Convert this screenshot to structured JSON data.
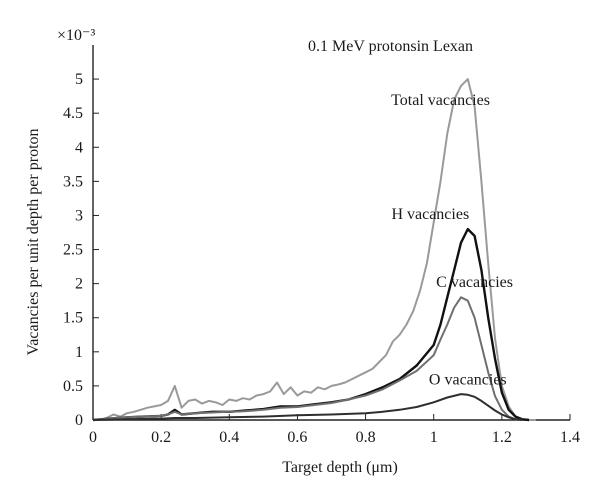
{
  "chart_data": {
    "type": "line",
    "title": "0.1 MeV protonsin Lexan",
    "xlabel": "Target depth (μm)",
    "ylabel": "Vacancies per unit depth per proton",
    "y_multiplier_label": "×10⁻³",
    "xlim": [
      0,
      1.4
    ],
    "ylim": [
      0,
      0.0055
    ],
    "x_ticks": [
      0,
      0.2,
      0.4,
      0.6,
      0.8,
      1,
      1.2,
      1.4
    ],
    "x_tick_labels": [
      "0",
      "0.2",
      "0.4",
      "0.6",
      "0.8",
      "1",
      "1.2",
      "1.4"
    ],
    "y_ticks": [
      0,
      0.0005,
      0.001,
      0.0015,
      0.002,
      0.0025,
      0.003,
      0.0035,
      0.004,
      0.0045,
      0.005
    ],
    "y_tick_labels": [
      "0",
      "0.5",
      "1",
      "1.5",
      "2",
      "2.5",
      "3",
      "3.5",
      "4",
      "4.5",
      "5"
    ],
    "grid": false,
    "series": [
      {
        "name": "Total vacancies",
        "color": "#9a9a9a",
        "x": [
          0.0,
          0.02,
          0.04,
          0.06,
          0.08,
          0.1,
          0.12,
          0.14,
          0.16,
          0.18,
          0.2,
          0.22,
          0.24,
          0.26,
          0.28,
          0.3,
          0.32,
          0.34,
          0.36,
          0.38,
          0.4,
          0.42,
          0.44,
          0.46,
          0.48,
          0.5,
          0.52,
          0.54,
          0.56,
          0.58,
          0.6,
          0.62,
          0.64,
          0.66,
          0.68,
          0.7,
          0.72,
          0.74,
          0.76,
          0.78,
          0.8,
          0.82,
          0.84,
          0.86,
          0.88,
          0.9,
          0.92,
          0.94,
          0.96,
          0.98,
          1.0,
          1.02,
          1.04,
          1.06,
          1.08,
          1.1,
          1.12,
          1.14,
          1.16,
          1.18,
          1.2,
          1.22,
          1.24,
          1.26,
          1.28,
          1.3
        ],
        "values": [
          0.0,
          0.0,
          3e-05,
          8e-05,
          5e-05,
          0.0001,
          0.00012,
          0.00015,
          0.00018,
          0.0002,
          0.00022,
          0.00028,
          0.0005,
          0.00018,
          0.00028,
          0.0003,
          0.00024,
          0.00028,
          0.00026,
          0.00022,
          0.0003,
          0.00028,
          0.00032,
          0.0003,
          0.00036,
          0.00038,
          0.00042,
          0.00055,
          0.00038,
          0.00048,
          0.00036,
          0.00042,
          0.0004,
          0.00048,
          0.00045,
          0.0005,
          0.00052,
          0.00055,
          0.0006,
          0.00065,
          0.0007,
          0.00075,
          0.00085,
          0.00095,
          0.00115,
          0.00125,
          0.0014,
          0.0016,
          0.0019,
          0.0023,
          0.0029,
          0.0035,
          0.0042,
          0.0047,
          0.0049,
          0.005,
          0.0046,
          0.0035,
          0.0023,
          0.0012,
          0.0005,
          0.0002,
          5e-05,
          0.0,
          0.0,
          0.0
        ]
      },
      {
        "name": "H vacancies",
        "color": "#111111",
        "x": [
          0.0,
          0.05,
          0.1,
          0.15,
          0.2,
          0.22,
          0.24,
          0.26,
          0.3,
          0.35,
          0.4,
          0.45,
          0.5,
          0.55,
          0.6,
          0.65,
          0.7,
          0.75,
          0.8,
          0.85,
          0.9,
          0.95,
          1.0,
          1.02,
          1.04,
          1.06,
          1.08,
          1.1,
          1.12,
          1.14,
          1.16,
          1.18,
          1.2,
          1.22,
          1.24,
          1.26,
          1.28
        ],
        "values": [
          0.0,
          2e-05,
          4e-05,
          5e-05,
          6e-05,
          8e-05,
          0.00015,
          8e-05,
          0.0001,
          0.00012,
          0.00012,
          0.00014,
          0.00016,
          0.0002,
          0.0002,
          0.00023,
          0.00026,
          0.0003,
          0.00038,
          0.00048,
          0.0006,
          0.0008,
          0.0011,
          0.0014,
          0.0018,
          0.0022,
          0.0026,
          0.0028,
          0.0027,
          0.0022,
          0.0015,
          0.0009,
          0.0004,
          0.00015,
          5e-05,
          1e-05,
          0.0
        ]
      },
      {
        "name": "C vacancies",
        "color": "#6f6f6f",
        "x": [
          0.0,
          0.05,
          0.1,
          0.15,
          0.2,
          0.22,
          0.24,
          0.26,
          0.3,
          0.35,
          0.4,
          0.45,
          0.5,
          0.55,
          0.6,
          0.65,
          0.7,
          0.75,
          0.8,
          0.85,
          0.9,
          0.95,
          1.0,
          1.02,
          1.04,
          1.06,
          1.08,
          1.1,
          1.12,
          1.14,
          1.16,
          1.18,
          1.2,
          1.22,
          1.24,
          1.26
        ],
        "values": [
          0.0,
          2e-05,
          4e-05,
          5e-05,
          6e-05,
          8e-05,
          0.00012,
          8e-05,
          0.0001,
          0.00011,
          0.00012,
          0.00013,
          0.00015,
          0.00018,
          0.00019,
          0.00022,
          0.00025,
          0.0003,
          0.00036,
          0.00045,
          0.00058,
          0.00072,
          0.00095,
          0.00118,
          0.0014,
          0.00165,
          0.0018,
          0.00175,
          0.0015,
          0.0011,
          0.0007,
          0.00035,
          0.00015,
          5e-05,
          1e-05,
          0.0
        ]
      },
      {
        "name": "O vacancies",
        "color": "#2e2e2e",
        "x": [
          0.0,
          0.1,
          0.2,
          0.24,
          0.3,
          0.4,
          0.5,
          0.6,
          0.7,
          0.8,
          0.85,
          0.9,
          0.95,
          1.0,
          1.04,
          1.08,
          1.1,
          1.12,
          1.14,
          1.16,
          1.18,
          1.2,
          1.22,
          1.24,
          1.26
        ],
        "values": [
          0.0,
          1e-05,
          2e-05,
          3e-05,
          3e-05,
          4e-05,
          5e-05,
          7e-05,
          8e-05,
          0.0001,
          0.00012,
          0.00015,
          0.00019,
          0.00026,
          0.00033,
          0.00038,
          0.00037,
          0.00034,
          0.00028,
          0.00021,
          0.00014,
          8e-05,
          4e-05,
          1e-05,
          0.0
        ]
      }
    ],
    "annotations": [
      {
        "text": "Total vacancies",
        "x": 1.02,
        "y": 0.00462
      },
      {
        "text": "H vacancies",
        "x": 0.99,
        "y": 0.00295
      },
      {
        "text": "C vacancies",
        "x": 1.12,
        "y": 0.00195
      },
      {
        "text": "O vacancies",
        "x": 1.1,
        "y": 0.00052
      }
    ]
  }
}
